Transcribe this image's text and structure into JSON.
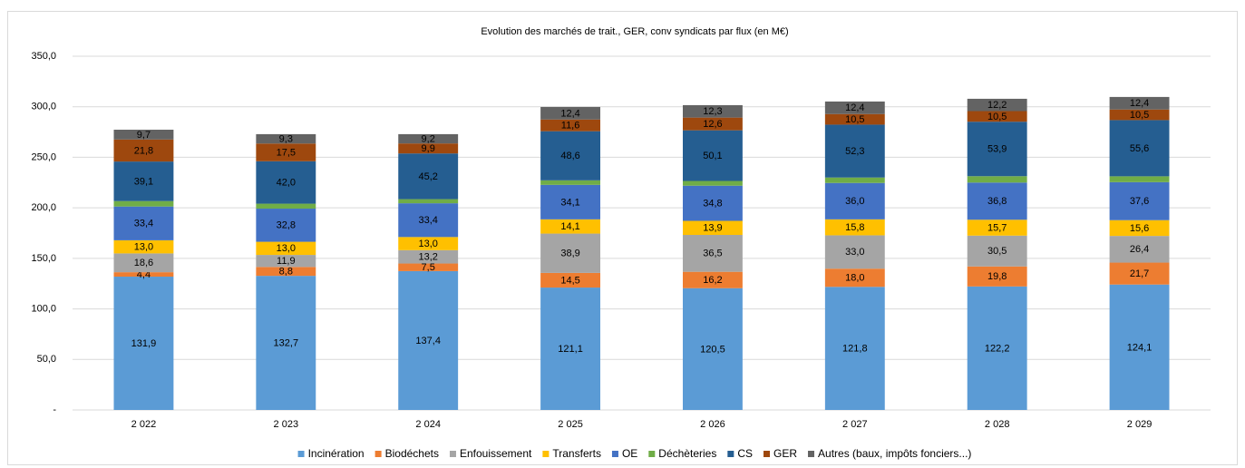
{
  "chart_data": {
    "type": "stacked_bar",
    "title": "Evolution des marchés de trait., GER, conv syndicats par flux (en M€)",
    "categories": [
      "2 022",
      "2 023",
      "2 024",
      "2 025",
      "2 026",
      "2 027",
      "2 028",
      "2 029"
    ],
    "ylim": [
      0,
      350
    ],
    "yticks": [
      {
        "value": 0,
        "label": "-"
      },
      {
        "value": 50,
        "label": "50,0"
      },
      {
        "value": 100,
        "label": "100,0"
      },
      {
        "value": 150,
        "label": "150,0"
      },
      {
        "value": 200,
        "label": "200,0"
      },
      {
        "value": 250,
        "label": "250,0"
      },
      {
        "value": 300,
        "label": "300,0"
      },
      {
        "value": 350,
        "label": "350,0"
      }
    ],
    "grid": true,
    "legend": "bottom",
    "series": [
      {
        "name": "Incinération",
        "color": "#5b9bd5",
        "values": [
          131.9,
          132.7,
          137.4,
          121.1,
          120.5,
          121.8,
          122.2,
          124.1
        ],
        "value_labels": [
          "131,9",
          "132,7",
          "137,4",
          "121,1",
          "120,5",
          "121,8",
          "122,2",
          "124,1"
        ]
      },
      {
        "name": "Biodéchets",
        "color": "#ed7d31",
        "values": [
          4.4,
          8.8,
          7.5,
          14.5,
          16.2,
          18.0,
          19.8,
          21.7
        ],
        "value_labels": [
          "4,4",
          "8,8",
          "7,5",
          "14,5",
          "16,2",
          "18,0",
          "19,8",
          "21,7"
        ]
      },
      {
        "name": "Enfouissement",
        "color": "#a5a5a5",
        "values": [
          18.6,
          11.9,
          13.2,
          38.9,
          36.5,
          33.0,
          30.5,
          26.4
        ],
        "value_labels": [
          "18,6",
          "11,9",
          "13,2",
          "38,9",
          "36,5",
          "33,0",
          "30,5",
          "26,4"
        ]
      },
      {
        "name": "Transferts",
        "color": "#ffc000",
        "values": [
          13.0,
          13.0,
          13.0,
          14.1,
          13.9,
          15.8,
          15.7,
          15.6
        ],
        "value_labels": [
          "13,0",
          "13,0",
          "13,0",
          "14,1",
          "13,9",
          "15,8",
          "15,7",
          "15,6"
        ]
      },
      {
        "name": "OE",
        "color": "#4472c4",
        "values": [
          33.4,
          32.8,
          33.4,
          34.1,
          34.8,
          36.0,
          36.8,
          37.6
        ],
        "value_labels": [
          "33,4",
          "32,8",
          "33,4",
          "34,1",
          "34,8",
          "36,0",
          "36,8",
          "37,6"
        ]
      },
      {
        "name": "Déchèteries",
        "color": "#70ad47",
        "values": [
          5.4,
          4.9,
          4.1,
          4.5,
          4.7,
          5.4,
          6.3,
          5.8
        ]
      },
      {
        "name": "CS",
        "color": "#255e91",
        "values": [
          39.1,
          42.0,
          45.2,
          48.6,
          50.1,
          52.3,
          53.9,
          55.6
        ],
        "value_labels": [
          "39,1",
          "42,0",
          "45,2",
          "48,6",
          "50,1",
          "52,3",
          "53,9",
          "55,6"
        ]
      },
      {
        "name": "GER",
        "color": "#9e480e",
        "values": [
          21.8,
          17.5,
          9.9,
          11.6,
          12.6,
          10.5,
          10.5,
          10.5
        ],
        "value_labels": [
          "21,8",
          "17,5",
          "9,9",
          "11,6",
          "12,6",
          "10,5",
          "10,5",
          "10,5"
        ]
      },
      {
        "name": "Autres (baux, impôts fonciers...)",
        "color": "#636363",
        "values": [
          9.7,
          9.3,
          9.2,
          12.4,
          12.3,
          12.4,
          12.2,
          12.4
        ],
        "value_labels": [
          "9,7",
          "9,3",
          "9,2",
          "12,4",
          "12,3",
          "12,4",
          "12,2",
          "12,4"
        ]
      }
    ]
  }
}
